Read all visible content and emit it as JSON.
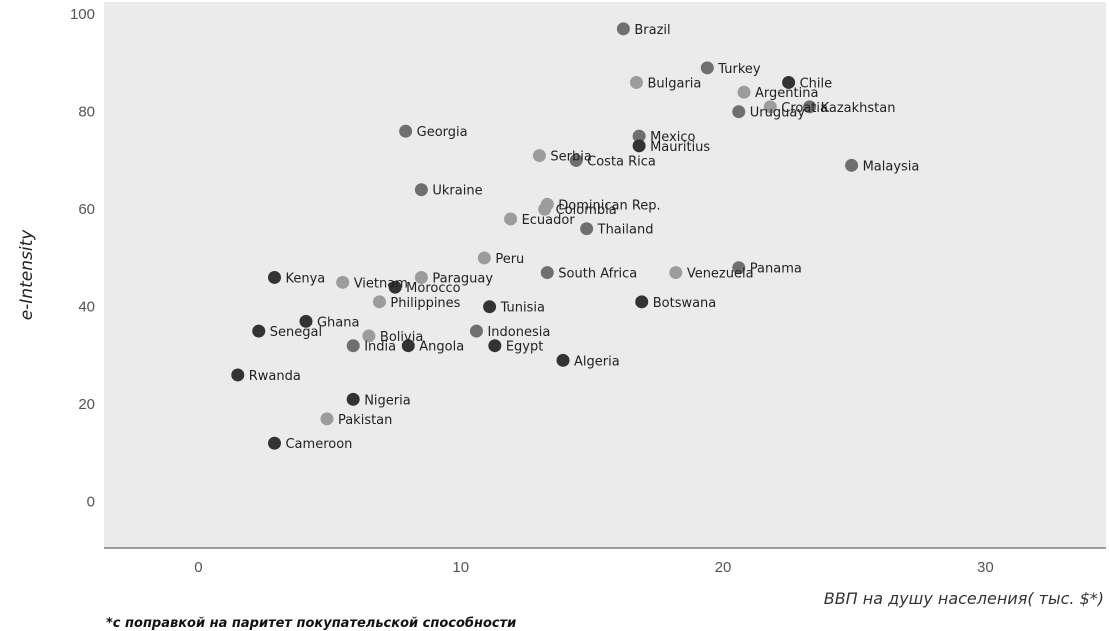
{
  "chart_data": {
    "type": "scatter",
    "xlabel": "ВВП на душу населения( тыс. $*)",
    "ylabel": "e-Intensity",
    "footnote": "*с поправкой на паритет покупательской способности",
    "xlim": [
      -3.6,
      34.6
    ],
    "ylim": [
      -9.5,
      102.5
    ],
    "x_ticks": [
      "0",
      "10",
      "20",
      "30"
    ],
    "y_ticks": [
      "0",
      "20",
      "40",
      "60",
      "80",
      "100"
    ],
    "grid": false,
    "legend": "none",
    "colors": {
      "plot_bg": "#ebebeb",
      "dark": "#333333",
      "mid": "#6f6f6f",
      "light": "#9c9c9c"
    },
    "points": [
      {
        "label": "Brazil",
        "x": 16.2,
        "y": 97,
        "shade": "mid"
      },
      {
        "label": "Turkey",
        "x": 19.4,
        "y": 89,
        "shade": "mid"
      },
      {
        "label": "Chile",
        "x": 22.5,
        "y": 86,
        "shade": "dark"
      },
      {
        "label": "Bulgaria",
        "x": 16.7,
        "y": 86,
        "shade": "light"
      },
      {
        "label": "Argentina",
        "x": 20.8,
        "y": 84,
        "shade": "light"
      },
      {
        "label": "Croatia",
        "x": 21.8,
        "y": 81,
        "shade": "light"
      },
      {
        "label": "Kazakhstan",
        "x": 23.3,
        "y": 81,
        "shade": "mid"
      },
      {
        "label": "Uruguay",
        "x": 20.6,
        "y": 80,
        "shade": "mid"
      },
      {
        "label": "Mexico",
        "x": 16.8,
        "y": 75,
        "shade": "mid"
      },
      {
        "label": "Mauritius",
        "x": 16.8,
        "y": 73,
        "shade": "dark"
      },
      {
        "label": "Georgia",
        "x": 7.9,
        "y": 76,
        "shade": "mid"
      },
      {
        "label": "Serbia",
        "x": 13.0,
        "y": 71,
        "shade": "light"
      },
      {
        "label": "Costa Rica",
        "x": 14.4,
        "y": 70,
        "shade": "mid"
      },
      {
        "label": "Malaysia",
        "x": 24.9,
        "y": 69,
        "shade": "mid"
      },
      {
        "label": "Ukraine",
        "x": 8.5,
        "y": 64,
        "shade": "mid"
      },
      {
        "label": "Dominican Rep.",
        "x": 13.3,
        "y": 61,
        "shade": "light"
      },
      {
        "label": "Colombia",
        "x": 13.2,
        "y": 60,
        "shade": "light"
      },
      {
        "label": "Ecuador",
        "x": 11.9,
        "y": 58,
        "shade": "light"
      },
      {
        "label": "Thailand",
        "x": 14.8,
        "y": 56,
        "shade": "mid"
      },
      {
        "label": "Peru",
        "x": 10.9,
        "y": 50,
        "shade": "light"
      },
      {
        "label": "Panama",
        "x": 20.6,
        "y": 48,
        "shade": "mid"
      },
      {
        "label": "South Africa",
        "x": 13.3,
        "y": 47,
        "shade": "mid"
      },
      {
        "label": "Venezuela",
        "x": 18.2,
        "y": 47,
        "shade": "light"
      },
      {
        "label": "Kenya",
        "x": 2.9,
        "y": 46,
        "shade": "dark"
      },
      {
        "label": "Vietnam",
        "x": 5.5,
        "y": 45,
        "shade": "light"
      },
      {
        "label": "Paraguay",
        "x": 8.5,
        "y": 46,
        "shade": "light"
      },
      {
        "label": "Morocco",
        "x": 7.5,
        "y": 44,
        "shade": "dark"
      },
      {
        "label": "Philippines",
        "x": 6.9,
        "y": 41,
        "shade": "light"
      },
      {
        "label": "Botswana",
        "x": 16.9,
        "y": 41,
        "shade": "dark"
      },
      {
        "label": "Tunisia",
        "x": 11.1,
        "y": 40,
        "shade": "dark"
      },
      {
        "label": "Ghana",
        "x": 4.1,
        "y": 37,
        "shade": "dark"
      },
      {
        "label": "Senegal",
        "x": 2.3,
        "y": 35,
        "shade": "dark"
      },
      {
        "label": "Bolivia",
        "x": 6.5,
        "y": 34,
        "shade": "light"
      },
      {
        "label": "Indonesia",
        "x": 10.6,
        "y": 35,
        "shade": "mid"
      },
      {
        "label": "India",
        "x": 5.9,
        "y": 32,
        "shade": "mid"
      },
      {
        "label": "Angola",
        "x": 8.0,
        "y": 32,
        "shade": "dark"
      },
      {
        "label": "Egypt",
        "x": 11.3,
        "y": 32,
        "shade": "dark"
      },
      {
        "label": "Algeria",
        "x": 13.9,
        "y": 29,
        "shade": "dark"
      },
      {
        "label": "Rwanda",
        "x": 1.5,
        "y": 26,
        "shade": "dark"
      },
      {
        "label": "Nigeria",
        "x": 5.9,
        "y": 21,
        "shade": "dark"
      },
      {
        "label": "Pakistan",
        "x": 4.9,
        "y": 17,
        "shade": "light"
      },
      {
        "label": "Cameroon",
        "x": 2.9,
        "y": 12,
        "shade": "dark"
      }
    ]
  }
}
